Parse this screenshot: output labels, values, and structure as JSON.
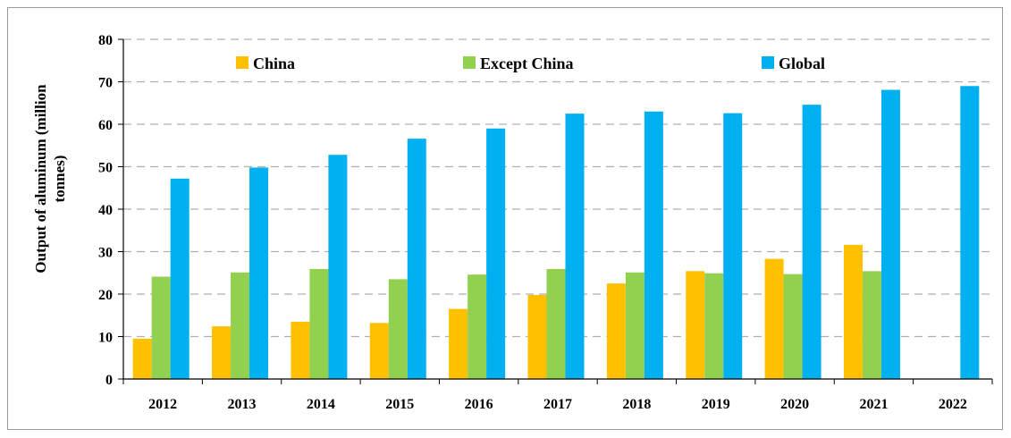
{
  "chart_data": {
    "type": "bar",
    "title": "",
    "ylabel_lines": [
      "Output of aluminum (million",
      "tonnes)"
    ],
    "xlabel": "",
    "ylim": [
      0,
      80
    ],
    "yticks": [
      0,
      10,
      20,
      30,
      40,
      50,
      60,
      70,
      80
    ],
    "grid": true,
    "legend_position": "top",
    "categories": [
      "2012",
      "2013",
      "2014",
      "2015",
      "2016",
      "2017",
      "2018",
      "2019",
      "2020",
      "2021",
      "2022"
    ],
    "series": [
      {
        "name": "China",
        "color": "#FFC000",
        "values": [
          9.5,
          12.4,
          13.5,
          13.2,
          16.5,
          19.8,
          22.5,
          25.4,
          28.3,
          31.6,
          null
        ]
      },
      {
        "name": "Except China",
        "color": "#92D050",
        "values": [
          24.1,
          25.1,
          25.9,
          23.5,
          24.6,
          25.9,
          25.1,
          24.9,
          24.7,
          25.4,
          null
        ]
      },
      {
        "name": "Global",
        "color": "#00B0F0",
        "values": [
          47.2,
          49.8,
          52.8,
          56.6,
          59.0,
          62.5,
          63.0,
          62.6,
          64.6,
          68.1,
          69.0
        ]
      }
    ]
  }
}
